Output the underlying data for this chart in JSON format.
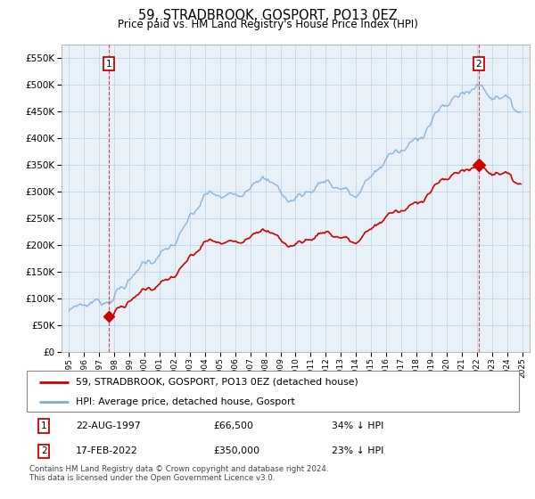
{
  "title": "59, STRADBROOK, GOSPORT, PO13 0EZ",
  "subtitle": "Price paid vs. HM Land Registry's House Price Index (HPI)",
  "line1_label": "59, STRADBROOK, GOSPORT, PO13 0EZ (detached house)",
  "line2_label": "HPI: Average price, detached house, Gosport",
  "line1_color": "#cc0000",
  "line2_color": "#7aaddc",
  "transaction1_date": "22-AUG-1997",
  "transaction1_price": 66500,
  "transaction1_note": "34% ↓ HPI",
  "transaction2_date": "17-FEB-2022",
  "transaction2_price": 350000,
  "transaction2_note": "23% ↓ HPI",
  "transaction1_x": 1997.64,
  "transaction2_x": 2022.12,
  "ylim": [
    0,
    575000
  ],
  "yticks": [
    0,
    50000,
    100000,
    150000,
    200000,
    250000,
    300000,
    350000,
    400000,
    450000,
    500000,
    550000
  ],
  "xlim": [
    1994.5,
    2025.5
  ],
  "footer": "Contains HM Land Registry data © Crown copyright and database right 2024.\nThis data is licensed under the Open Government Licence v3.0.",
  "background_color": "#ffffff",
  "grid_color": "#c8d8e8",
  "plot_bg_color": "#e8f0f8"
}
